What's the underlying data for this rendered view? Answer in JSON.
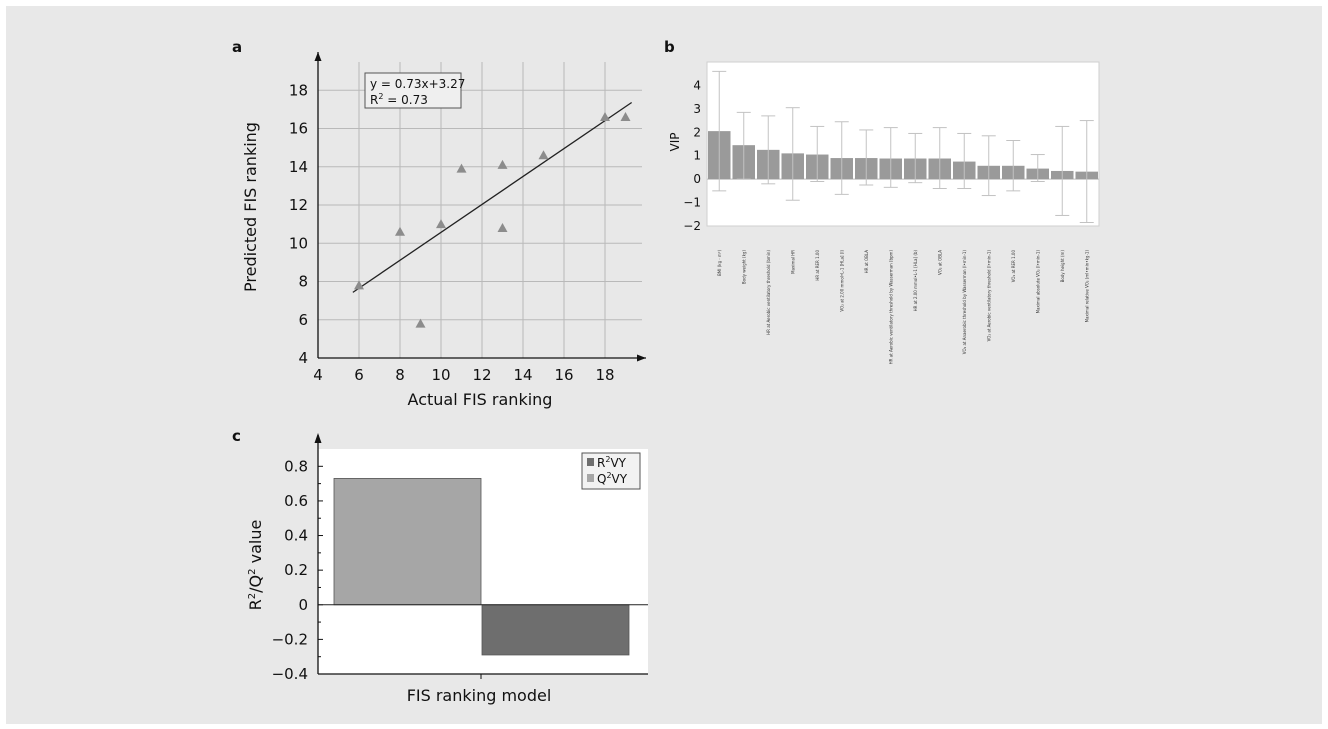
{
  "panels": {
    "a": "a",
    "b": "b",
    "c": "c"
  },
  "chart_data": [
    {
      "panel": "a",
      "type": "scatter",
      "xlabel": "Actual FIS ranking",
      "ylabel": "Predicted FIS ranking",
      "xlim": [
        4,
        20
      ],
      "ylim": [
        4,
        20
      ],
      "xticks": [
        4,
        6,
        8,
        10,
        12,
        14,
        16,
        18
      ],
      "yticks": [
        4,
        6,
        8,
        10,
        12,
        14,
        16,
        18
      ],
      "grid": true,
      "marker": "triangle",
      "marker_color": "#8c8c8c",
      "points": [
        {
          "x": 6,
          "y": 7.8
        },
        {
          "x": 8,
          "y": 10.6
        },
        {
          "x": 9,
          "y": 5.8
        },
        {
          "x": 10,
          "y": 11.0
        },
        {
          "x": 11,
          "y": 13.9
        },
        {
          "x": 13,
          "y": 14.1
        },
        {
          "x": 13,
          "y": 10.8
        },
        {
          "x": 15,
          "y": 14.6
        },
        {
          "x": 18,
          "y": 16.6
        },
        {
          "x": 19,
          "y": 16.6
        }
      ],
      "fit": {
        "slope": 0.73,
        "intercept": 3.27,
        "x_range": [
          5.7,
          19.3
        ]
      },
      "annotation": [
        "y = 0.73x+3.27",
        "R",
        "2",
        " = 0.73"
      ]
    },
    {
      "panel": "b",
      "type": "bar",
      "ylabel": "VIP",
      "ylim": [
        -2,
        5
      ],
      "yticks": [
        -2,
        -1,
        0,
        1,
        2,
        3,
        4
      ],
      "bar_color": "#9a9a9a",
      "error_color": "#c2c2c2",
      "categories": [
        "BMI (kg · m²)",
        "Body weight (kg)",
        "HR at Aerobic ventilatory threshold (bmin)",
        "Maximal HR",
        "HR at RER 1.00",
        "VO₂ at 2.00 mmol•L-1 [HLa] (l)",
        "HR at OBLA",
        "HR at Aerobic ventilatory threshold by Wasserman (bpm)",
        "HR at 2.00 mmol•L-1 [HLa] (b)",
        "VO₂ at OBLA",
        "VO₂ at Anaerobic threshold by Wasserman (l•min-1)",
        "VO₂ at Aerobic ventilatory threshold (l•min-1)",
        "VO₂ at RER 1.00",
        "Maximal absolute VO₂ (l•min-1)",
        "Body height (m)",
        "Maximal relative VO₂ (ml•min•kg-1)"
      ],
      "values": [
        2.05,
        1.45,
        1.25,
        1.1,
        1.05,
        0.9,
        0.9,
        0.88,
        0.88,
        0.88,
        0.75,
        0.57,
        0.57,
        0.45,
        0.35,
        0.32
      ],
      "error_low": [
        -0.5,
        0.0,
        -0.2,
        -0.9,
        -0.1,
        -0.65,
        -0.25,
        -0.35,
        -0.15,
        -0.4,
        -0.4,
        -0.7,
        -0.5,
        -0.1,
        -1.55,
        -1.85
      ],
      "error_high": [
        4.6,
        2.85,
        2.7,
        3.05,
        2.25,
        2.45,
        2.1,
        2.2,
        1.95,
        2.2,
        1.95,
        1.85,
        1.65,
        1.05,
        2.25,
        2.5
      ]
    },
    {
      "panel": "c",
      "type": "bar",
      "categories": [
        "FIS ranking model"
      ],
      "ylabel_parts": [
        "R",
        "2",
        "/Q",
        "2",
        " value"
      ],
      "ylim": [
        -0.4,
        0.9
      ],
      "yticks": [
        -0.4,
        -0.2,
        0,
        0.2,
        0.4,
        0.6,
        0.8
      ],
      "ytick_labels": [
        "−0.4",
        "−0.2",
        "0",
        "0.2",
        "0.4",
        "0.6",
        "0.8"
      ],
      "series": [
        {
          "name": "Q2VY",
          "legend_parts": [
            "Q",
            "2",
            "VY"
          ],
          "values": [
            0.73
          ],
          "color": "#a6a6a6"
        },
        {
          "name": "R2VY",
          "legend_parts": [
            "R",
            "2",
            "VY"
          ],
          "values": [
            -0.29
          ],
          "color": "#6e6e6e"
        }
      ],
      "legend_position": "top-right"
    }
  ]
}
